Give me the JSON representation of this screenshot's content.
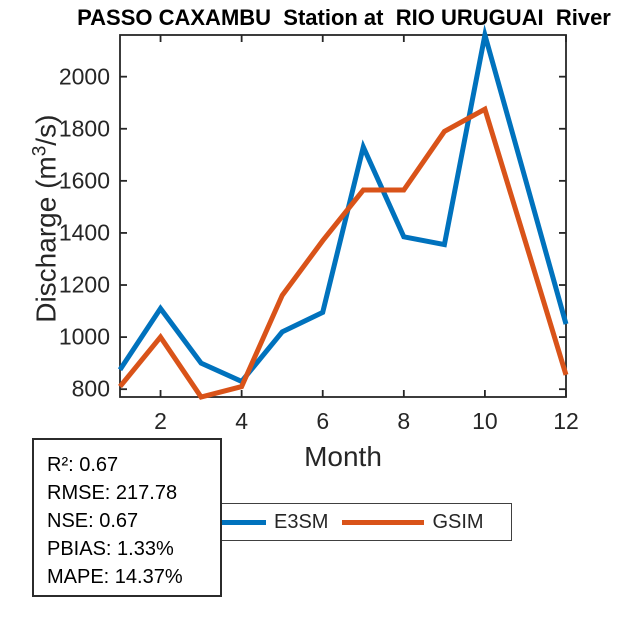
{
  "title": "PASSO CAXAMBU  Station at  RIO URUGUAI  River",
  "axis_color": "#262626",
  "chart_data": {
    "type": "line",
    "x": [
      1,
      2,
      3,
      4,
      5,
      6,
      7,
      8,
      9,
      10,
      11,
      12
    ],
    "series": [
      {
        "name": "E3SM",
        "color": "#0072BD",
        "values": [
          875,
          1110,
          900,
          830,
          1020,
          1095,
          1730,
          1385,
          1355,
          2160,
          1605,
          1050
        ]
      },
      {
        "name": "GSIM",
        "color": "#D95319",
        "values": [
          810,
          1000,
          770,
          810,
          1160,
          1370,
          1565,
          1565,
          1790,
          1875,
          1365,
          855
        ]
      }
    ],
    "title": "PASSO CAXAMBU  Station at  RIO URUGUAI  River",
    "xlabel": "Month",
    "ylabel": "Discharge (m³/s)",
    "ylabel_pre": "Discharge (m",
    "ylabel_sup": "3",
    "ylabel_post": "/s)",
    "xlim": [
      1,
      12
    ],
    "ylim": [
      770,
      2160
    ],
    "xticks": [
      2,
      4,
      6,
      8,
      10,
      12
    ],
    "yticks": [
      800,
      1000,
      1200,
      1400,
      1600,
      1800,
      2000
    ],
    "grid": false,
    "legend_position": "below axis, horizontal",
    "line_width": 5
  },
  "legend": {
    "items": [
      {
        "label": "E3SM",
        "color": "#0072BD"
      },
      {
        "label": "GSIM",
        "color": "#D95319"
      }
    ]
  },
  "stats_box": {
    "lines": [
      "R²: 0.67",
      "RMSE: 217.78",
      "NSE: 0.67",
      "PBIAS: 1.33%",
      "MAPE: 14.37%"
    ]
  }
}
